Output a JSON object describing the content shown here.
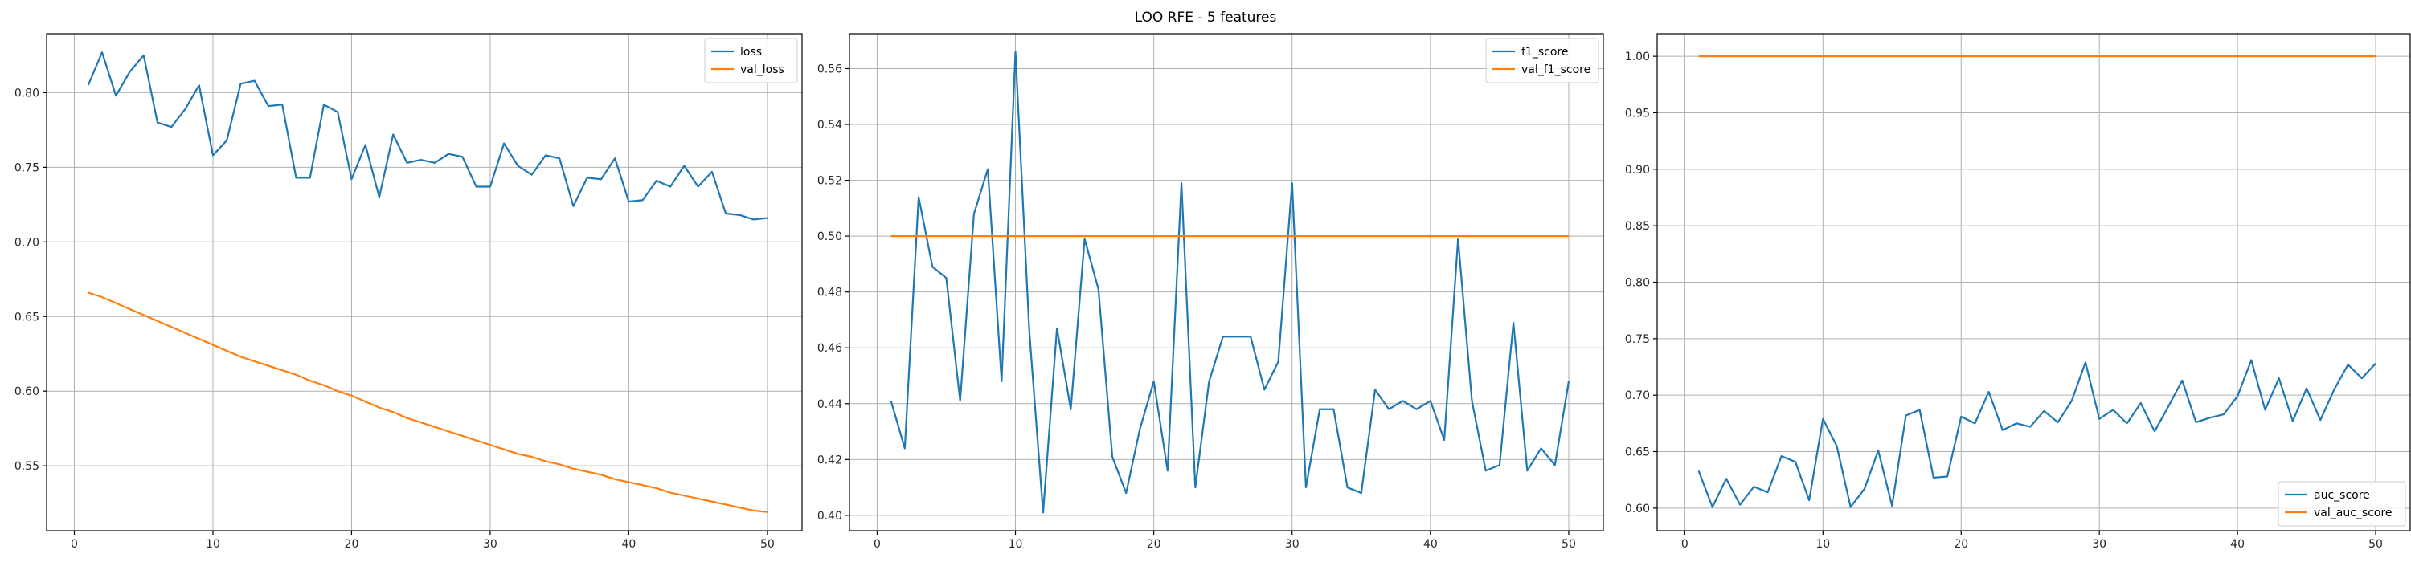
{
  "figure": {
    "title": "LOO RFE - 5 features"
  },
  "colors": {
    "blue": "#1f77b4",
    "orange": "#ff7f0e"
  },
  "chart_data": [
    {
      "type": "line",
      "grid": true,
      "legend_position": "top-right",
      "xlim": [
        -2,
        52.5
      ],
      "ylim": [
        0.5065,
        0.8395
      ],
      "xticks": [
        0,
        10,
        20,
        30,
        40,
        50
      ],
      "yticks": [
        0.55,
        0.6,
        0.65,
        0.7,
        0.75,
        0.8
      ],
      "ytick_decimals": 2,
      "series": [
        {
          "name": "loss",
          "color": "#1f77b4",
          "x": [
            1,
            2,
            3,
            4,
            5,
            6,
            7,
            8,
            9,
            10,
            11,
            12,
            13,
            14,
            15,
            16,
            17,
            18,
            19,
            20,
            21,
            22,
            23,
            24,
            25,
            26,
            27,
            28,
            29,
            30,
            31,
            32,
            33,
            34,
            35,
            36,
            37,
            38,
            39,
            40,
            41,
            42,
            43,
            44,
            45,
            46,
            47,
            48,
            49,
            50
          ],
          "values": [
            0.805,
            0.827,
            0.798,
            0.814,
            0.825,
            0.78,
            0.777,
            0.789,
            0.805,
            0.758,
            0.768,
            0.806,
            0.808,
            0.791,
            0.792,
            0.743,
            0.743,
            0.792,
            0.787,
            0.742,
            0.765,
            0.73,
            0.772,
            0.753,
            0.755,
            0.753,
            0.759,
            0.757,
            0.737,
            0.737,
            0.766,
            0.751,
            0.745,
            0.758,
            0.756,
            0.724,
            0.743,
            0.742,
            0.756,
            0.727,
            0.728,
            0.741,
            0.737,
            0.751,
            0.737,
            0.747,
            0.719,
            0.718,
            0.715,
            0.716
          ]
        },
        {
          "name": "val_loss",
          "color": "#ff7f0e",
          "x": [
            1,
            2,
            3,
            4,
            5,
            6,
            7,
            8,
            9,
            10,
            11,
            12,
            13,
            14,
            15,
            16,
            17,
            18,
            19,
            20,
            21,
            22,
            23,
            24,
            25,
            26,
            27,
            28,
            29,
            30,
            31,
            32,
            33,
            34,
            35,
            36,
            37,
            38,
            39,
            40,
            41,
            42,
            43,
            44,
            45,
            46,
            47,
            48,
            49,
            50
          ],
          "values": [
            0.666,
            0.663,
            0.659,
            0.655,
            0.651,
            0.647,
            0.643,
            0.639,
            0.635,
            0.631,
            0.627,
            0.623,
            0.62,
            0.617,
            0.614,
            0.611,
            0.607,
            0.604,
            0.6,
            0.597,
            0.593,
            0.589,
            0.586,
            0.582,
            0.579,
            0.576,
            0.573,
            0.57,
            0.567,
            0.564,
            0.561,
            0.558,
            0.556,
            0.553,
            0.551,
            0.548,
            0.546,
            0.544,
            0.541,
            0.539,
            0.537,
            0.535,
            0.532,
            0.53,
            0.528,
            0.526,
            0.524,
            0.522,
            0.52,
            0.519
          ]
        }
      ]
    },
    {
      "type": "line",
      "grid": true,
      "legend_position": "top-right",
      "xlim": [
        -2,
        52.5
      ],
      "ylim": [
        0.3945,
        0.5725
      ],
      "xticks": [
        0,
        10,
        20,
        30,
        40,
        50
      ],
      "yticks": [
        0.4,
        0.42,
        0.44,
        0.46,
        0.48,
        0.5,
        0.52,
        0.54,
        0.56
      ],
      "ytick_decimals": 2,
      "series": [
        {
          "name": "f1_score",
          "color": "#1f77b4",
          "x": [
            1,
            2,
            3,
            4,
            5,
            6,
            7,
            8,
            9,
            10,
            11,
            12,
            13,
            14,
            15,
            16,
            17,
            18,
            19,
            20,
            21,
            22,
            23,
            24,
            25,
            26,
            27,
            28,
            29,
            30,
            31,
            32,
            33,
            34,
            35,
            36,
            37,
            38,
            39,
            40,
            41,
            42,
            43,
            44,
            45,
            46,
            47,
            48,
            49,
            50
          ],
          "values": [
            0.441,
            0.424,
            0.514,
            0.489,
            0.485,
            0.441,
            0.508,
            0.524,
            0.448,
            0.566,
            0.466,
            0.401,
            0.467,
            0.438,
            0.499,
            0.481,
            0.421,
            0.408,
            0.431,
            0.448,
            0.416,
            0.519,
            0.41,
            0.448,
            0.464,
            0.464,
            0.464,
            0.445,
            0.455,
            0.519,
            0.41,
            0.438,
            0.438,
            0.41,
            0.408,
            0.445,
            0.438,
            0.441,
            0.438,
            0.441,
            0.427,
            0.499,
            0.441,
            0.416,
            0.418,
            0.469,
            0.416,
            0.424,
            0.418,
            0.448
          ]
        },
        {
          "name": "val_f1_score",
          "color": "#ff7f0e",
          "x": [
            1,
            50
          ],
          "values": [
            0.5,
            0.5
          ]
        }
      ]
    },
    {
      "type": "line",
      "grid": true,
      "legend_position": "bottom-right",
      "xlim": [
        -2,
        52.5
      ],
      "ylim": [
        0.58,
        1.02
      ],
      "xticks": [
        0,
        10,
        20,
        30,
        40,
        50
      ],
      "yticks": [
        0.6,
        0.65,
        0.7,
        0.75,
        0.8,
        0.85,
        0.9,
        0.95,
        1.0
      ],
      "ytick_decimals": 2,
      "series": [
        {
          "name": "auc_score",
          "color": "#1f77b4",
          "x": [
            1,
            2,
            3,
            4,
            5,
            6,
            7,
            8,
            9,
            10,
            11,
            12,
            13,
            14,
            15,
            16,
            17,
            18,
            19,
            20,
            21,
            22,
            23,
            24,
            25,
            26,
            27,
            28,
            29,
            30,
            31,
            32,
            33,
            34,
            35,
            36,
            37,
            38,
            39,
            40,
            41,
            42,
            43,
            44,
            45,
            46,
            47,
            48,
            49,
            50
          ],
          "values": [
            0.633,
            0.601,
            0.626,
            0.603,
            0.619,
            0.614,
            0.646,
            0.641,
            0.607,
            0.679,
            0.655,
            0.601,
            0.617,
            0.651,
            0.602,
            0.682,
            0.687,
            0.627,
            0.628,
            0.681,
            0.675,
            0.703,
            0.669,
            0.675,
            0.672,
            0.686,
            0.676,
            0.695,
            0.729,
            0.679,
            0.687,
            0.675,
            0.693,
            0.668,
            0.69,
            0.713,
            0.676,
            0.68,
            0.683,
            0.699,
            0.731,
            0.687,
            0.715,
            0.677,
            0.706,
            0.678,
            0.705,
            0.727,
            0.715,
            0.728
          ]
        },
        {
          "name": "val_auc_score",
          "color": "#ff7f0e",
          "x": [
            1,
            50
          ],
          "values": [
            1.0,
            1.0
          ]
        }
      ]
    }
  ]
}
